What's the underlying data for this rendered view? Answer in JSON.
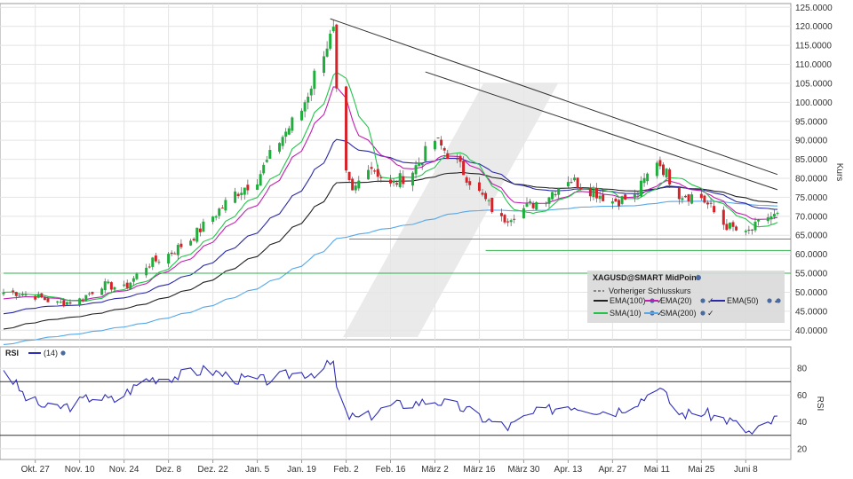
{
  "colors": {
    "bull": "#1fae3c",
    "bear": "#d6232a",
    "wick": "#555555",
    "ema100": "#222222",
    "ema20": "#c21fb0",
    "ema50": "#2a2aa8",
    "sma10": "#22c44a",
    "sma200": "#56a8e8",
    "rsi": "#2f2fb8",
    "support": "#2fb24a",
    "resistance": "#333333"
  },
  "icons": [
    "settings-dot-icon",
    "check-icon"
  ],
  "chart_data": [
    {
      "type": "candlestick",
      "ylabel": "Kurs",
      "ylim": [
        37.5,
        126
      ],
      "y_ticks": [
        "125.0000",
        "120.0000",
        "115.0000",
        "110.0000",
        "105.0000",
        "100.0000",
        "95.0000",
        "90.0000",
        "85.0000",
        "80.0000",
        "75.0000",
        "70.0000",
        "65.0000",
        "60.0000",
        "55.0000",
        "50.0000",
        "45.0000",
        "40.0000"
      ],
      "x_tick_labels": [
        "Okt. 27",
        "Nov. 10",
        "Nov. 24",
        "Dez. 8",
        "Dez. 22",
        "Jan. 5",
        "Jan. 19",
        "Feb. 2",
        "Feb. 16",
        "März 2",
        "März 16",
        "März 30",
        "Apr. 13",
        "Apr. 27",
        "Mai 11",
        "Mai 25",
        "Juni 8"
      ],
      "close_keyframes": [
        [
          "Okt. 20",
          50
        ],
        [
          "Okt. 27",
          49
        ],
        [
          "Nov. 3",
          47
        ],
        [
          "Nov. 10",
          48
        ],
        [
          "Nov. 17",
          52
        ],
        [
          "Nov. 24",
          51
        ],
        [
          "Dez. 1",
          57
        ],
        [
          "Dez. 8",
          60
        ],
        [
          "Dez. 15",
          64
        ],
        [
          "Dez. 22",
          70
        ],
        [
          "Dez. 29",
          76
        ],
        [
          "Jan. 5",
          80
        ],
        [
          "Jan. 12",
          90
        ],
        [
          "Jan. 19",
          98
        ],
        [
          "Jan. 26",
          114
        ],
        [
          "Jan. 29",
          118
        ],
        [
          "Jan. 31",
          85
        ],
        [
          "Feb. 4",
          76
        ],
        [
          "Feb. 9",
          84
        ],
        [
          "Feb. 16",
          78
        ],
        [
          "Feb. 23",
          82
        ],
        [
          "März 2",
          90
        ],
        [
          "März 9",
          84
        ],
        [
          "März 16",
          76
        ],
        [
          "März 23",
          69
        ],
        [
          "März 30",
          72
        ],
        [
          "Apr. 6",
          75
        ],
        [
          "Apr. 13",
          80
        ],
        [
          "Apr. 20",
          77
        ],
        [
          "Apr. 27",
          74
        ],
        [
          "Mai 4",
          75
        ],
        [
          "Mai 11",
          85
        ],
        [
          "Mai 18",
          76
        ],
        [
          "Mai 25",
          75
        ],
        [
          "Juni 1",
          68
        ],
        [
          "Juni 8",
          65
        ],
        [
          "Juni 15",
          70
        ]
      ],
      "trendlines": [
        {
          "name": "resistance-upper",
          "from": [
            "Jan. 28",
            122
          ],
          "to": [
            "Juni 18",
            81
          ]
        },
        {
          "name": "resistance-lower",
          "from": [
            "Feb. 27",
            108
          ],
          "to": [
            "Juni 18",
            77
          ]
        }
      ],
      "horizontal_lines": [
        {
          "name": "support-55",
          "value": 55,
          "from": "Okt. 17"
        },
        {
          "name": "support-61",
          "value": 61,
          "from": "März 18"
        },
        {
          "name": "support-64",
          "value": 64,
          "from": "Feb. 3"
        }
      ],
      "legend": {
        "placement": "bottom-right",
        "title": "XAGUSD@SMART MidPoint",
        "prev_close": "Vorheriger Schlusskurs",
        "items": [
          {
            "label": "EMA(100)",
            "key": "ema100"
          },
          {
            "label": "EMA(20)",
            "key": "ema20"
          },
          {
            "label": "EMA(50)",
            "key": "ema50"
          },
          {
            "label": "SMA(10)",
            "key": "sma10"
          },
          {
            "label": "SMA(200)",
            "key": "sma200"
          }
        ]
      },
      "grid": true
    },
    {
      "type": "line",
      "title": "RSI",
      "series_label": "(14)",
      "ylabel": "RSI",
      "ylim": [
        12,
        96
      ],
      "y_ticks": [
        "80",
        "60",
        "40",
        "20"
      ],
      "reference_lines": [
        70,
        30
      ],
      "rsi_keyframes": [
        [
          "Okt. 17",
          80
        ],
        [
          "Okt. 24",
          58
        ],
        [
          "Okt. 31",
          50
        ],
        [
          "Nov. 7",
          52
        ],
        [
          "Nov. 14",
          59
        ],
        [
          "Nov. 21",
          56
        ],
        [
          "Dez. 1",
          72
        ],
        [
          "Dez. 10",
          74
        ],
        [
          "Dez. 20",
          79
        ],
        [
          "Dez. 30",
          72
        ],
        [
          "Jan. 8",
          71
        ],
        [
          "Jan. 16",
          76
        ],
        [
          "Jan. 23",
          77
        ],
        [
          "Jan. 29",
          84
        ],
        [
          "Jan. 31",
          46
        ],
        [
          "Feb. 7",
          42
        ],
        [
          "Feb. 16",
          52
        ],
        [
          "März 2",
          56
        ],
        [
          "März 11",
          50
        ],
        [
          "März 18",
          42
        ],
        [
          "März 25",
          36
        ],
        [
          "Apr. 2",
          46
        ],
        [
          "Apr. 13",
          53
        ],
        [
          "Apr. 27",
          47
        ],
        [
          "Mai 7",
          58
        ],
        [
          "Mai 11",
          68
        ],
        [
          "Mai 18",
          46
        ],
        [
          "Mai 25",
          47
        ],
        [
          "Juni 3",
          41
        ],
        [
          "Juni 10",
          31
        ],
        [
          "Juni 18",
          43
        ]
      ],
      "grid": true
    }
  ]
}
